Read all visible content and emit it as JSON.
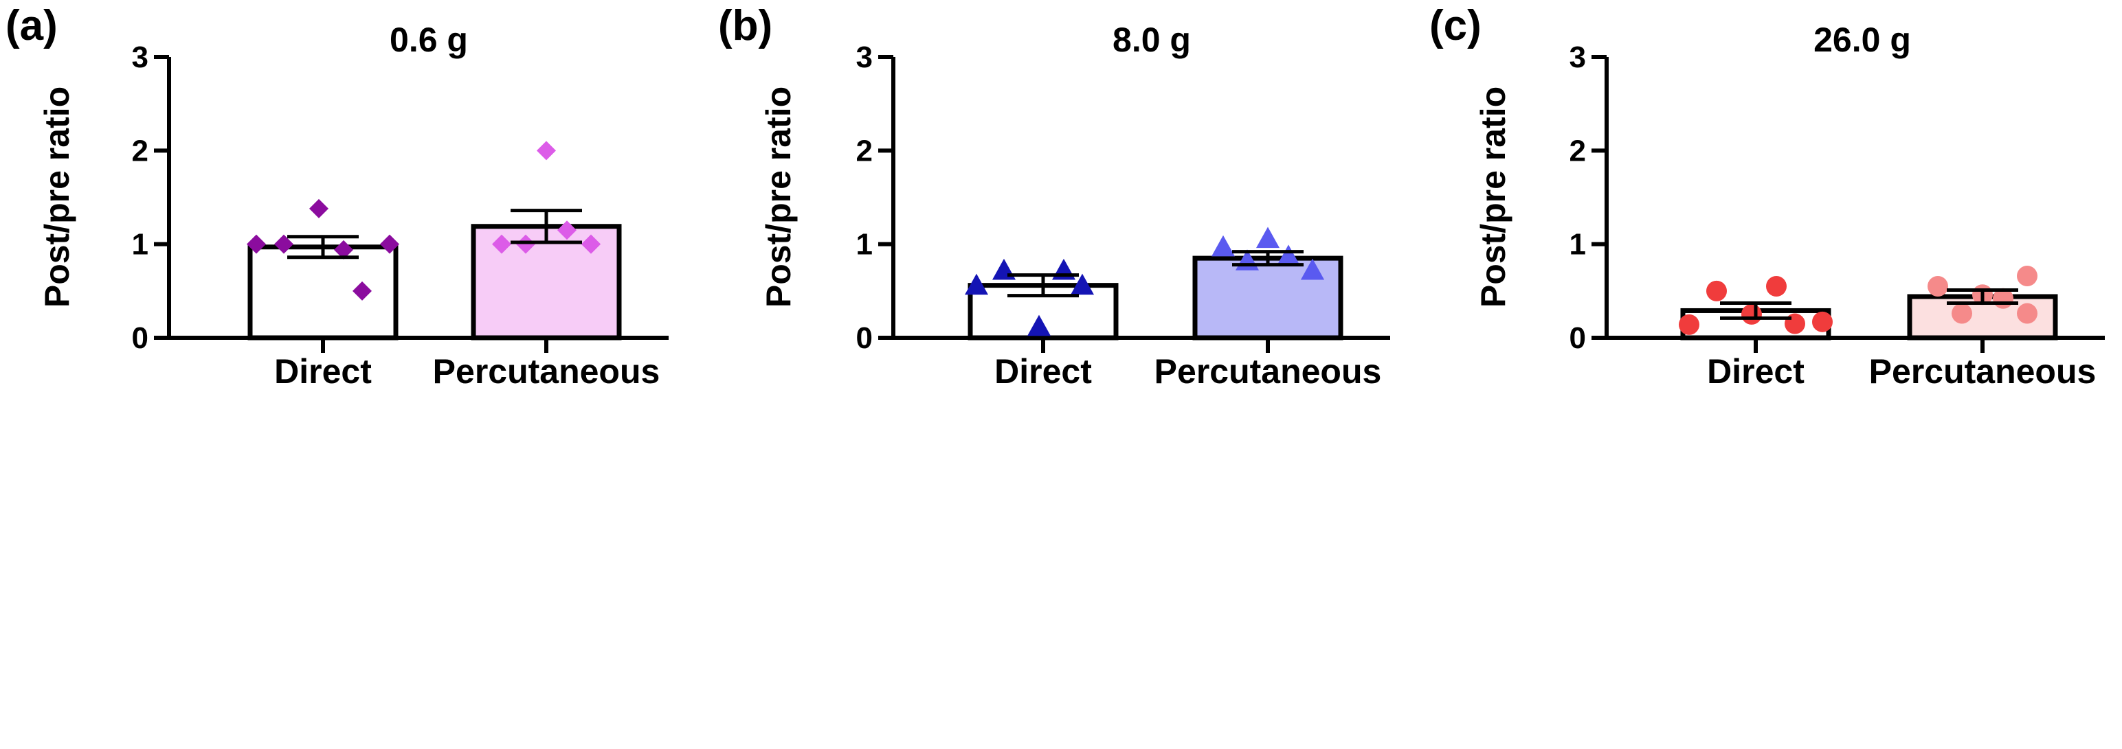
{
  "chart_data": [
    {
      "type": "bar",
      "panel_label": "(a)",
      "title": "0.6 g",
      "ylabel": "Post/pre ratio",
      "xlabel": "",
      "ylim": [
        0,
        3
      ],
      "yticks": [
        0,
        1,
        2,
        3
      ],
      "categories": [
        "Direct",
        "Percutaneous"
      ],
      "values": [
        0.97,
        1.19
      ],
      "sem": [
        0.11,
        0.17
      ],
      "bar_colors": [
        "#ffffff",
        "#f7ccf7"
      ],
      "marker": "diamond",
      "marker_colors": [
        "#8b0c9e",
        "#dc5ce8"
      ],
      "points": [
        [
          1.0,
          1.0,
          1.38,
          0.94,
          0.5,
          1.0
        ],
        [
          1.0,
          1.0,
          2.0,
          1.15,
          1.0,
          1.0
        ]
      ]
    },
    {
      "type": "bar",
      "panel_label": "(b)",
      "title": "8.0 g",
      "ylabel": "Post/pre ratio",
      "xlabel": "",
      "ylim": [
        0,
        3
      ],
      "yticks": [
        0,
        1,
        2,
        3
      ],
      "categories": [
        "Direct",
        "Percutaneous"
      ],
      "values": [
        0.56,
        0.85
      ],
      "sem": [
        0.11,
        0.07
      ],
      "bar_colors": [
        "#ffffff",
        "#b8b8f7"
      ],
      "marker": "triangle",
      "marker_colors": [
        "#1414b4",
        "#5a5af0"
      ],
      "points": [
        [
          0.56,
          0.72,
          0.12,
          0.72,
          0.56
        ],
        [
          0.97,
          0.82,
          1.06,
          0.87,
          0.72,
          0.72
        ]
      ]
    },
    {
      "type": "bar",
      "panel_label": "(c)",
      "title": "26.0 g",
      "ylabel": "Post/pre ratio",
      "xlabel": "",
      "ylim": [
        0,
        3
      ],
      "yticks": [
        0,
        1,
        2,
        3
      ],
      "categories": [
        "Direct",
        "Percutaneous"
      ],
      "values": [
        0.29,
        0.44
      ],
      "sem": [
        0.08,
        0.07
      ],
      "bar_colors": [
        "#ffffff",
        "#fce0e0"
      ],
      "marker": "circle",
      "marker_colors": [
        "#f03c3c",
        "#f58a8a"
      ],
      "points": [
        [
          0.14,
          0.5,
          0.25,
          0.55,
          0.15,
          0.17
        ],
        [
          0.55,
          0.26,
          0.46,
          0.42,
          0.66,
          0.26
        ]
      ]
    }
  ]
}
